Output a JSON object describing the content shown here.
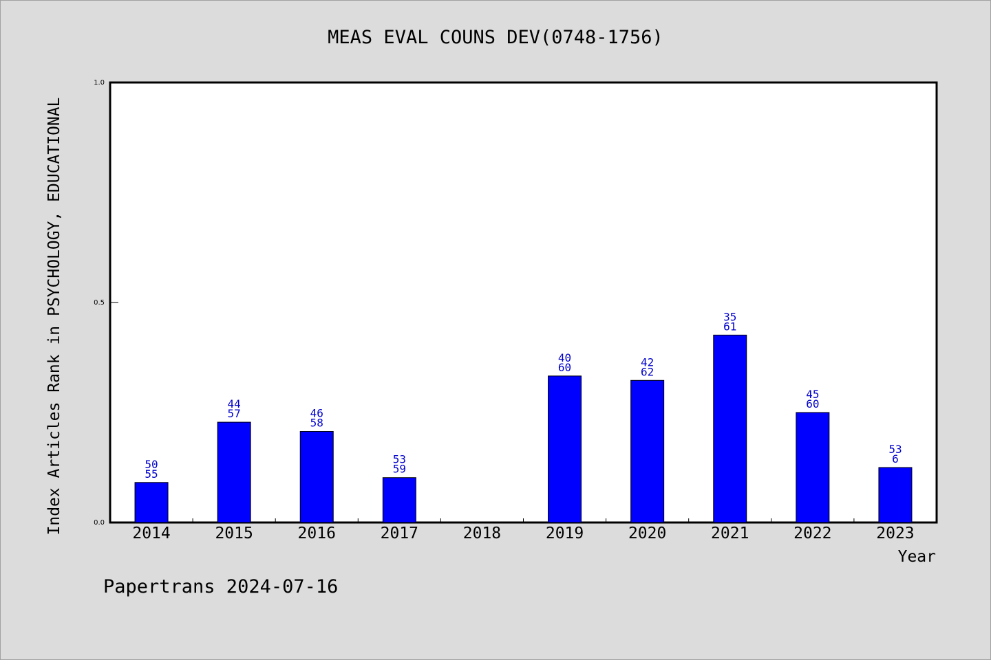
{
  "chart_data": {
    "type": "bar",
    "title": "MEAS EVAL COUNS DEV(0748-1756)",
    "xlabel": "Year",
    "ylabel": "Index Articles Rank in PSYCHOLOGY, EDUCATIONAL",
    "ylim": [
      0,
      1
    ],
    "yticks": [
      "0.0",
      "0.5",
      "1.0"
    ],
    "ytick_values": [
      0,
      0.5,
      1
    ],
    "categories": [
      "2014",
      "2015",
      "2016",
      "2017",
      "2018",
      "2019",
      "2020",
      "2021",
      "2022",
      "2023"
    ],
    "values": [
      0.091,
      0.228,
      0.207,
      0.102,
      null,
      0.333,
      0.323,
      0.426,
      0.25,
      0.125
    ],
    "labels_top": [
      "50",
      "44",
      "46",
      "53",
      "",
      "40",
      "42",
      "35",
      "45",
      "53"
    ],
    "labels_bottom": [
      "55",
      "57",
      "58",
      "59",
      "",
      "60",
      "62",
      "61",
      "60",
      "6"
    ],
    "grid": false,
    "bar_color": "#0000ff",
    "label_color": "#0000cc"
  },
  "footer": "Papertrans 2024-07-16"
}
